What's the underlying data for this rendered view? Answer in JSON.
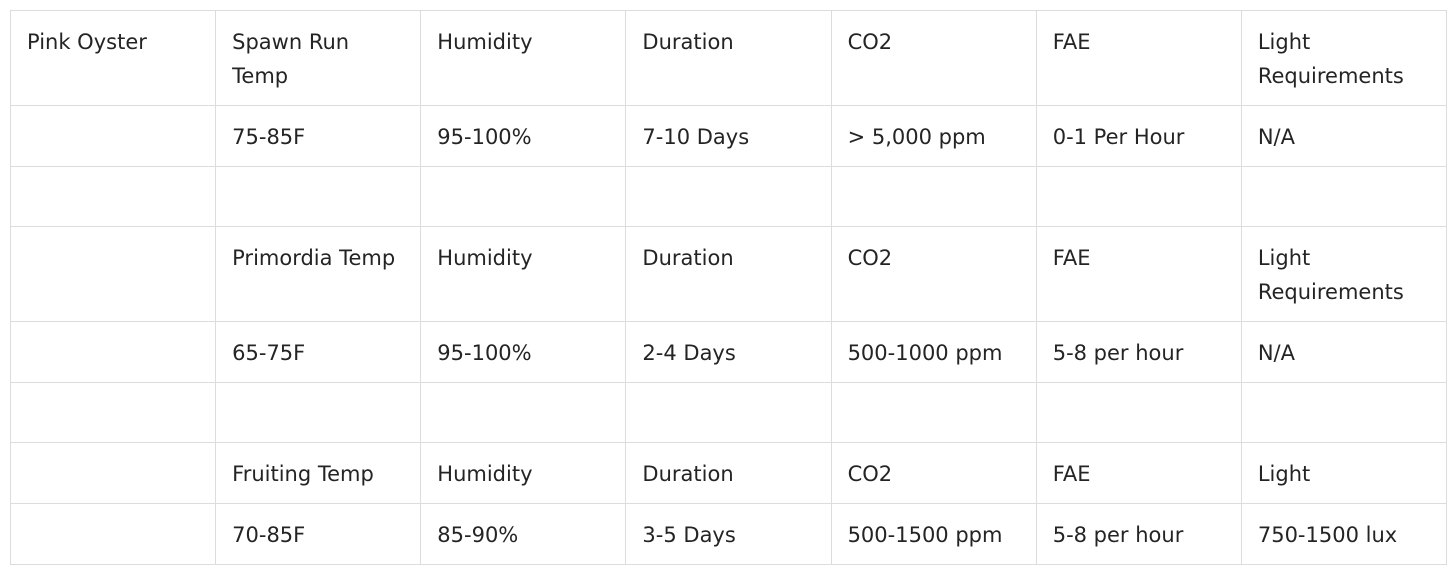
{
  "table": {
    "rows": [
      [
        "Pink Oyster",
        "Spawn Run Temp",
        "Humidity",
        "Duration",
        "CO2",
        "FAE",
        "Light Requirements"
      ],
      [
        null,
        "75-85F",
        "95-100%",
        "7-10 Days",
        "> 5,000 ppm",
        "0-1 Per Hour",
        "N/A"
      ],
      [
        null,
        null,
        null,
        null,
        null,
        null,
        null
      ],
      [
        null,
        "Primordia Temp",
        "Humidity",
        "Duration",
        "CO2",
        "FAE",
        "Light Requirements"
      ],
      [
        null,
        "65-75F",
        "95-100%",
        "2-4 Days",
        "500-1000 ppm",
        "5-8 per hour",
        "N/A"
      ],
      [
        null,
        null,
        null,
        null,
        null,
        null,
        null
      ],
      [
        null,
        "Fruiting Temp",
        "Humidity",
        "Duration",
        "CO2",
        "FAE",
        "Light"
      ],
      [
        null,
        "70-85F",
        "85-90%",
        "3-5 Days",
        "500-1500 ppm",
        "5-8 per hour",
        "750-1500 lux"
      ]
    ]
  }
}
